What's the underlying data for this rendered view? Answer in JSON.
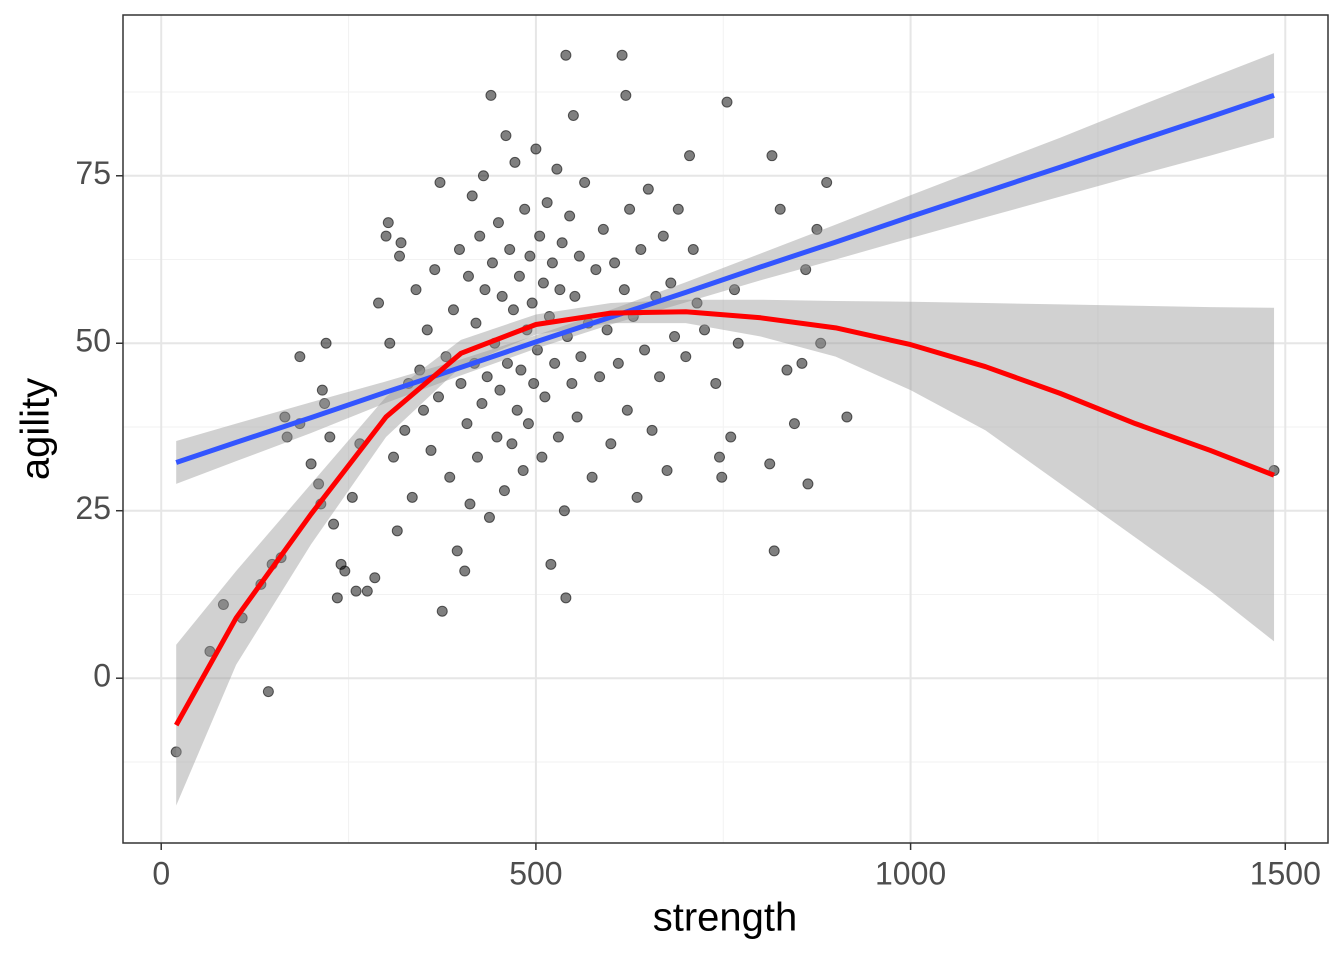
{
  "chart_data": {
    "type": "scatter",
    "x_label": "strength",
    "y_label": "agility",
    "xlim": [
      -51,
      1557
    ],
    "ylim": [
      -24.6,
      99
    ],
    "xticks": [
      0,
      500,
      1000,
      1500
    ],
    "yticks": [
      0,
      25,
      50,
      75
    ],
    "minor_xticks": [
      250,
      750,
      1250
    ],
    "minor_yticks": [
      -12.5,
      12.5,
      37.5,
      62.5,
      87.5
    ],
    "grid": true,
    "color": "#000000",
    "x": [
      20,
      65,
      83,
      108,
      143,
      133,
      148,
      160,
      165,
      168,
      185,
      185,
      200,
      210,
      213,
      215,
      218,
      220,
      225,
      230,
      235,
      240,
      245,
      255,
      260,
      265,
      275,
      285,
      290,
      300,
      303,
      305,
      310,
      315,
      318,
      320,
      325,
      330,
      335,
      340,
      345,
      350,
      355,
      360,
      365,
      370,
      372,
      375,
      380,
      385,
      390,
      395,
      398,
      400,
      405,
      408,
      410,
      412,
      415,
      418,
      420,
      422,
      425,
      428,
      430,
      432,
      435,
      438,
      440,
      442,
      445,
      448,
      450,
      452,
      455,
      458,
      460,
      462,
      465,
      468,
      470,
      472,
      475,
      478,
      480,
      483,
      485,
      488,
      490,
      492,
      495,
      497,
      500,
      502,
      505,
      508,
      510,
      512,
      515,
      518,
      520,
      522,
      525,
      528,
      530,
      532,
      535,
      538,
      540,
      540,
      542,
      545,
      548,
      550,
      552,
      555,
      558,
      560,
      565,
      570,
      575,
      580,
      585,
      590,
      595,
      600,
      605,
      610,
      615,
      618,
      620,
      622,
      625,
      630,
      635,
      640,
      645,
      650,
      655,
      660,
      665,
      670,
      675,
      680,
      685,
      690,
      700,
      705,
      710,
      715,
      725,
      740,
      745,
      748,
      755,
      760,
      765,
      770,
      812,
      815,
      818,
      826,
      835,
      845,
      855,
      860,
      863,
      875,
      880,
      888,
      915,
      1485
    ],
    "y": [
      -11,
      4,
      11,
      9,
      -2,
      14,
      17,
      18,
      39,
      36,
      38,
      48,
      32,
      29,
      26,
      43,
      41,
      50,
      36,
      23,
      12,
      17,
      16,
      27,
      13,
      35,
      13,
      15,
      56,
      66,
      68,
      50,
      33,
      22,
      63,
      65,
      37,
      44,
      27,
      58,
      46,
      40,
      52,
      34,
      61,
      42,
      74,
      10,
      48,
      30,
      55,
      19,
      64,
      44,
      16,
      38,
      60,
      26,
      72,
      47,
      53,
      33,
      66,
      41,
      75,
      58,
      45,
      24,
      87,
      62,
      50,
      36,
      68,
      43,
      57,
      28,
      81,
      47,
      64,
      35,
      55,
      77,
      40,
      60,
      46,
      31,
      70,
      52,
      38,
      63,
      56,
      44,
      79,
      49,
      66,
      33,
      59,
      42,
      71,
      54,
      17,
      62,
      47,
      76,
      36,
      58,
      65,
      25,
      93,
      12,
      51,
      69,
      44,
      84,
      57,
      39,
      63,
      48,
      74,
      53,
      30,
      61,
      45,
      67,
      52,
      35,
      62,
      47,
      93,
      58,
      87,
      40,
      70,
      54,
      27,
      64,
      49,
      73,
      37,
      57,
      45,
      66,
      31,
      59,
      51,
      70,
      48,
      78,
      64,
      56,
      52,
      44,
      33,
      30,
      86,
      36,
      58,
      50,
      32,
      78,
      19,
      70,
      46,
      38,
      47,
      61,
      29,
      67,
      50,
      74,
      39,
      31
    ],
    "smooth": {
      "x": [
        20,
        100,
        200,
        300,
        400,
        500,
        600,
        700,
        800,
        900,
        1000,
        1100,
        1200,
        1300,
        1400,
        1485
      ],
      "band_color": "#999999",
      "series": [
        {
          "color": "#3355ff",
          "values": [
            32.2,
            35.2,
            38.9,
            42.7,
            46.4,
            50.2,
            53.9,
            57.6,
            61.4,
            65.1,
            68.9,
            72.6,
            76.3,
            80.1,
            83.8,
            87.0
          ],
          "lower": [
            29,
            32.4,
            36.6,
            41.1,
            45.2,
            49.2,
            52.8,
            56.1,
            59.4,
            62.5,
            65.7,
            68.8,
            71.9,
            75.0,
            78.0,
            80.7
          ],
          "upper": [
            35.4,
            38.0,
            41.2,
            44.3,
            47.6,
            51.2,
            55.0,
            59.1,
            63.4,
            67.7,
            72.1,
            76.4,
            80.7,
            85.2,
            89.6,
            93.3
          ]
        },
        {
          "color": "#ff0000",
          "values": [
            -7,
            9,
            24.5,
            39,
            48.5,
            52.8,
            54.5,
            54.7,
            53.8,
            52.3,
            49.8,
            46.5,
            42.5,
            38,
            34,
            30.3
          ],
          "lower": [
            -19,
            2,
            20,
            36,
            46.5,
            51.3,
            53,
            53,
            51,
            48,
            43,
            37,
            29,
            21,
            13,
            5.5
          ],
          "upper": [
            5,
            16,
            29,
            42,
            50.5,
            54.3,
            56,
            56.5,
            56.5,
            56.3,
            56.2,
            56,
            55.8,
            55.6,
            55.4,
            55.3
          ]
        }
      ]
    }
  }
}
